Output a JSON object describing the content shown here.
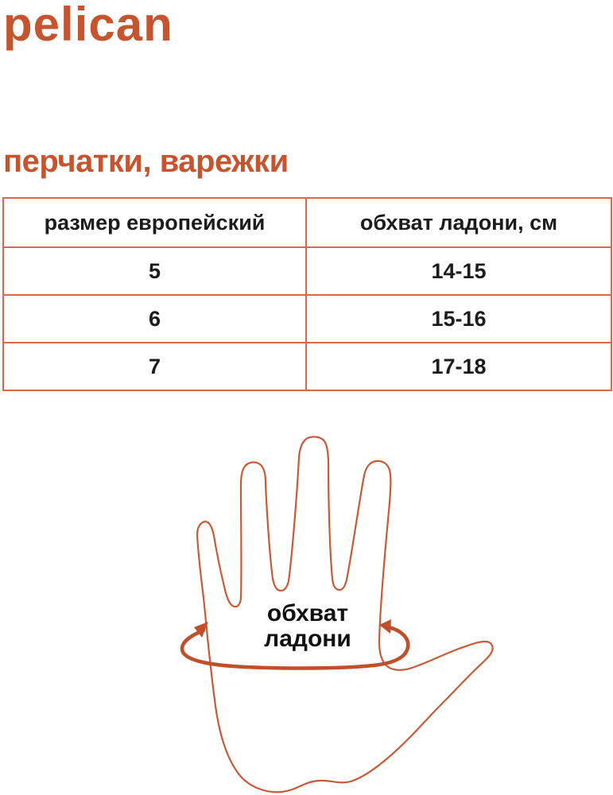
{
  "brand": {
    "logo_text": "pelican"
  },
  "page_title": "перчатки, варежки",
  "size_table": {
    "columns": [
      "размер европейский",
      "обхват ладони, см"
    ],
    "rows": [
      {
        "size": "5",
        "palm_cm": "14-15"
      },
      {
        "size": "6",
        "palm_cm": "15-16"
      },
      {
        "size": "7",
        "palm_cm": "17-18"
      }
    ]
  },
  "diagram": {
    "label_line1": "обхват",
    "label_line2": "ладони"
  },
  "colors": {
    "accent": "#c4552f",
    "table_border": "#d7684a",
    "hand_stroke": "#c75b38",
    "arrow_stroke": "#c04f2a",
    "text": "#1c1c1c"
  }
}
